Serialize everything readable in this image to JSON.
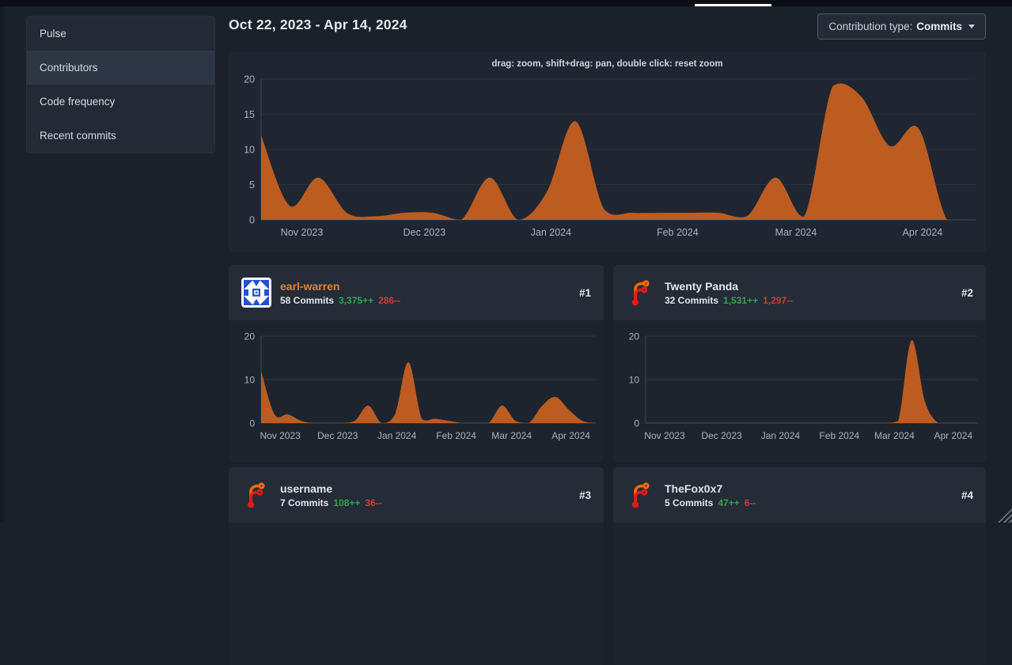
{
  "topbar": {
    "active_tab_underline_color": "#ffffff"
  },
  "sidebar": {
    "items": [
      {
        "label": "Pulse",
        "active": false
      },
      {
        "label": "Contributors",
        "active": true
      },
      {
        "label": "Code frequency",
        "active": false
      },
      {
        "label": "Recent commits",
        "active": false
      }
    ]
  },
  "header": {
    "date_range": "Oct 22, 2023 - Apr 14, 2024",
    "contribution_type_label": "Contribution type:",
    "contribution_type_value": "Commits"
  },
  "chart_data": [
    {
      "type": "area",
      "name": "overall-contributions",
      "hint": "drag: zoom, shift+drag: pan, double click: reset zoom",
      "x_start": "Oct 22, 2023",
      "x_end": "Apr 14, 2024",
      "interval": "week",
      "ylim": [
        0,
        20
      ],
      "y_ticks": [
        0,
        5,
        10,
        15,
        20
      ],
      "grid": true,
      "x_ticks": [
        {
          "label": "Nov 2023",
          "f": 0.0571
        },
        {
          "label": "Dec 2023",
          "f": 0.2286
        },
        {
          "label": "Jan 2024",
          "f": 0.4057
        },
        {
          "label": "Feb 2024",
          "f": 0.5829
        },
        {
          "label": "Mar 2024",
          "f": 0.7486
        },
        {
          "label": "Apr 2024",
          "f": 0.9257
        }
      ],
      "values": [
        12,
        2,
        6,
        1,
        0.5,
        1,
        1,
        0,
        6,
        0,
        4,
        14,
        1.5,
        1,
        1,
        1,
        1,
        0.5,
        6,
        0.5,
        19,
        17.5,
        10.5,
        13,
        0,
        0
      ]
    },
    {
      "type": "area",
      "name": "earl-warren-contributions",
      "x_start": "Oct 22, 2023",
      "x_end": "Apr 14, 2024",
      "interval": "week",
      "ylim": [
        0,
        20
      ],
      "y_ticks": [
        0,
        10,
        20
      ],
      "grid": true,
      "x_ticks": [
        {
          "label": "Nov 2023",
          "f": 0.0571
        },
        {
          "label": "Dec 2023",
          "f": 0.2286
        },
        {
          "label": "Jan 2024",
          "f": 0.4057
        },
        {
          "label": "Feb 2024",
          "f": 0.5829
        },
        {
          "label": "Mar 2024",
          "f": 0.7486
        },
        {
          "label": "Apr 2024",
          "f": 0.9257
        }
      ],
      "values": [
        12,
        2,
        2,
        0.5,
        0,
        0,
        0,
        0.5,
        4,
        0,
        2,
        14,
        1,
        1,
        0.5,
        0,
        0,
        0,
        4,
        0.5,
        0,
        4,
        6,
        3,
        0.5,
        0
      ]
    },
    {
      "type": "area",
      "name": "twenty-panda-contributions",
      "x_start": "Oct 22, 2023",
      "x_end": "Apr 14, 2024",
      "interval": "week",
      "ylim": [
        0,
        20
      ],
      "y_ticks": [
        0,
        10,
        20
      ],
      "grid": true,
      "x_ticks": [
        {
          "label": "Nov 2023",
          "f": 0.0571
        },
        {
          "label": "Dec 2023",
          "f": 0.2286
        },
        {
          "label": "Jan 2024",
          "f": 0.4057
        },
        {
          "label": "Feb 2024",
          "f": 0.5829
        },
        {
          "label": "Mar 2024",
          "f": 0.7486
        },
        {
          "label": "Apr 2024",
          "f": 0.9257
        }
      ],
      "values": [
        0,
        0,
        0,
        0,
        0,
        0,
        0,
        0,
        0,
        0,
        0,
        0,
        0,
        0,
        0,
        0,
        0,
        0,
        0,
        0.5,
        19,
        5,
        0,
        0,
        0,
        0
      ]
    }
  ],
  "contributors": [
    {
      "rank": "#1",
      "name": "earl-warren",
      "commits": "58 Commits",
      "additions": "3,375++",
      "deletions": "286--",
      "avatar_icon": "identicon",
      "name_color": "#e0832e"
    },
    {
      "rank": "#2",
      "name": "Twenty Panda",
      "commits": "32 Commits",
      "additions": "1,531++",
      "deletions": "1,297--",
      "avatar_icon": "forgejo-logo",
      "name_color": "#dfe6ec"
    },
    {
      "rank": "#3",
      "name": "username",
      "commits": "7 Commits",
      "additions": "108++",
      "deletions": "36--",
      "avatar_icon": "forgejo-logo",
      "name_color": "#dfe6ec"
    },
    {
      "rank": "#4",
      "name": "TheFox0x7",
      "commits": "5 Commits",
      "additions": "47++",
      "deletions": "6--",
      "avatar_icon": "forgejo-logo",
      "name_color": "#dfe6ec"
    }
  ],
  "colors": {
    "page_bg": "#1a212b",
    "panel_bg": "#1f2631",
    "card_header_bg": "#242c38",
    "card_body_bg": "#1d242e",
    "area": "#bd5c20",
    "grid": "#2a333f",
    "axis": "#3d4955",
    "tick_label": "#a9b3bd",
    "accent_link": "#e0832e",
    "additions_green": "#35a153",
    "deletions_red": "#cf3b3b",
    "identicon_blue": "#2553cd",
    "forgejo_orange": "#ff6a00",
    "forgejo_red": "#e11b1b"
  }
}
